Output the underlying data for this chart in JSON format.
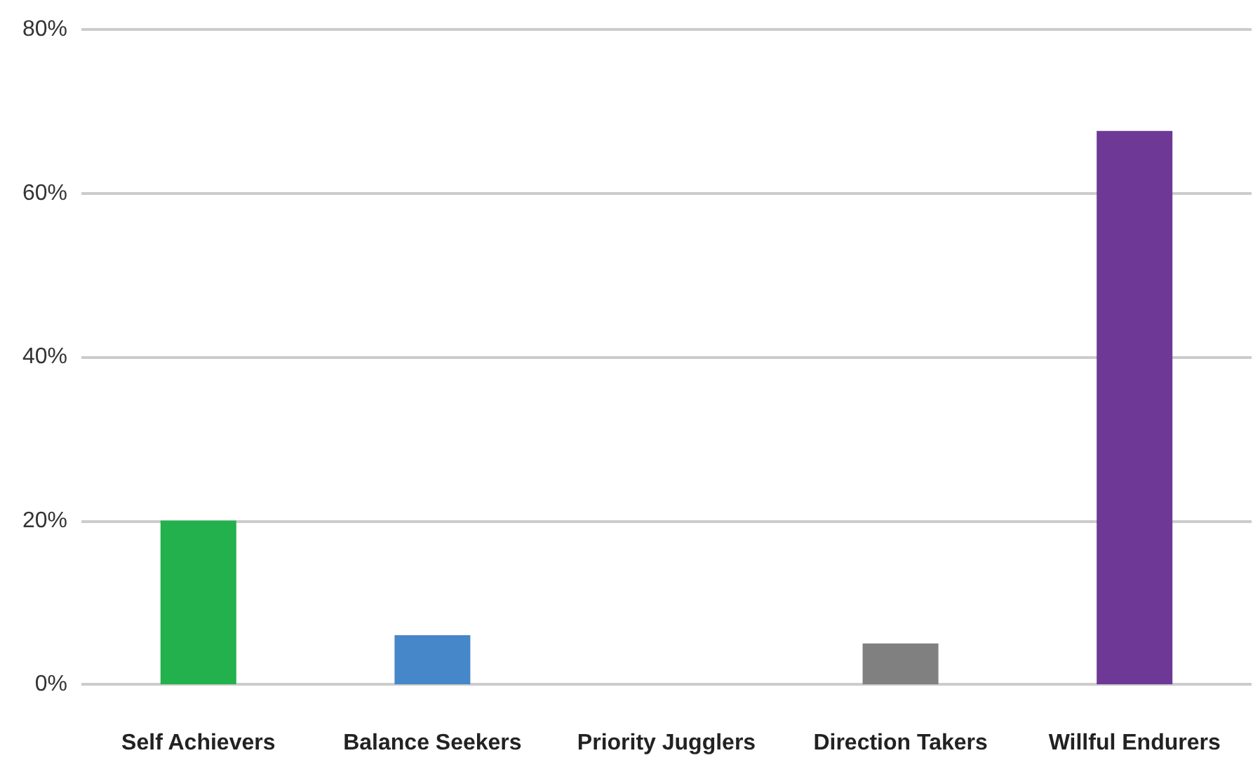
{
  "chart_data": {
    "type": "bar",
    "categories": [
      "Self Achievers",
      "Balance Seekers",
      "Priority Jugglers",
      "Direction Takers",
      "Willful Endurers"
    ],
    "values": [
      20,
      6,
      0,
      5,
      67.6
    ],
    "colors": [
      "#22b14c",
      "#4587c8",
      "#f0a030",
      "#808080",
      "#6e3996"
    ],
    "ylim": [
      0,
      80
    ],
    "yticks": [
      {
        "value": 0,
        "label": "0%"
      },
      {
        "value": 20,
        "label": "20%"
      },
      {
        "value": 40,
        "label": "40%"
      },
      {
        "value": 60,
        "label": "60%"
      },
      {
        "value": 80,
        "label": "80%"
      }
    ],
    "grid": "y"
  }
}
